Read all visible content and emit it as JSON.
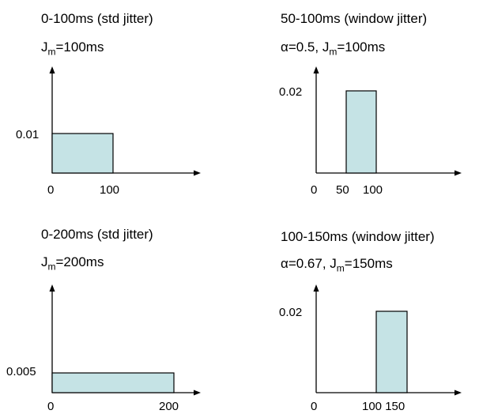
{
  "panels": [
    {
      "title": "0-100ms (std jitter)",
      "param_prefix": "",
      "param_jsub": "m",
      "param_value": "=100ms",
      "y_label": "0.01",
      "x_ticks": [
        "0",
        "100"
      ],
      "box_range": [
        0,
        100
      ],
      "box_height": 0.01,
      "fill": "#c5e3e5"
    },
    {
      "title": "50-100ms (window jitter)",
      "param_prefix": "α=0.5, J",
      "param_jsub": "m",
      "param_value": "=100ms",
      "y_label": "0.02",
      "x_ticks": [
        "0",
        "50",
        "100"
      ],
      "box_range": [
        50,
        100
      ],
      "box_height": 0.02,
      "fill": "#c5e3e5"
    },
    {
      "title": "0-200ms (std jitter)",
      "param_prefix": "",
      "param_jsub": "m",
      "param_value": "=200ms",
      "y_label": "0.005",
      "x_ticks": [
        "0",
        "200"
      ],
      "box_range": [
        0,
        200
      ],
      "box_height": 0.005,
      "fill": "#c5e3e5"
    },
    {
      "title": "100-150ms (window jitter)",
      "param_prefix": "α=0.67, J",
      "param_jsub": "m",
      "param_value": "=150ms",
      "y_label": "0.02",
      "x_ticks": [
        "0",
        "100 150"
      ],
      "box_range": [
        100,
        150
      ],
      "box_height": 0.02,
      "fill": "#c5e3e5"
    }
  ]
}
